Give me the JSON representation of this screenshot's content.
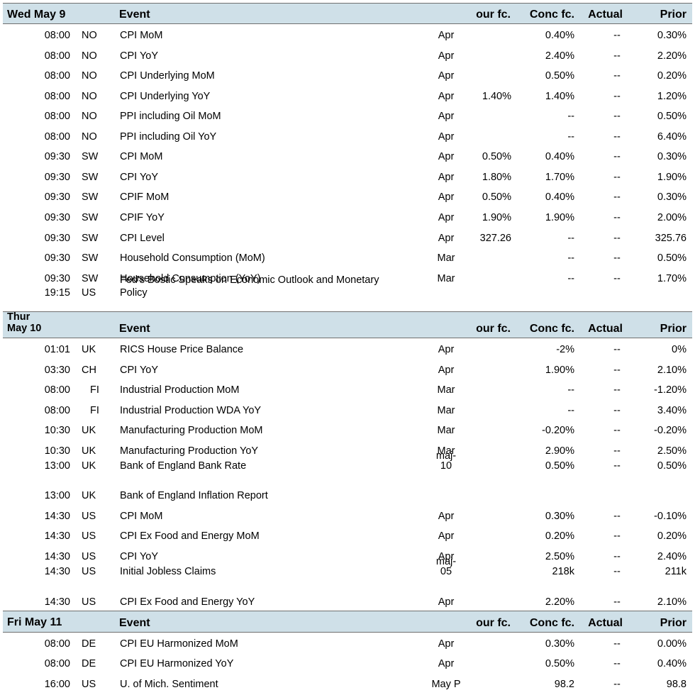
{
  "columns": {
    "event": "Event",
    "our_fc": "our fc.",
    "conc_fc": "Conc fc.",
    "actual": "Actual",
    "prior": "Prior"
  },
  "days": [
    {
      "label_lines": [
        "Wed May 9"
      ],
      "rows": [
        {
          "time": "08:00",
          "country": "NO",
          "event_lines": [
            "CPI MoM"
          ],
          "period_lines": [
            "Apr"
          ],
          "our_fc": "",
          "conc_fc": "0.40%",
          "actual": "--",
          "prior": "0.30%"
        },
        {
          "time": "08:00",
          "country": "NO",
          "event_lines": [
            "CPI YoY"
          ],
          "period_lines": [
            "Apr"
          ],
          "our_fc": "",
          "conc_fc": "2.40%",
          "actual": "--",
          "prior": "2.20%"
        },
        {
          "time": "08:00",
          "country": "NO",
          "event_lines": [
            "CPI Underlying MoM"
          ],
          "period_lines": [
            "Apr"
          ],
          "our_fc": "",
          "conc_fc": "0.50%",
          "actual": "--",
          "prior": "0.20%"
        },
        {
          "time": "08:00",
          "country": "NO",
          "event_lines": [
            "CPI Underlying YoY"
          ],
          "period_lines": [
            "Apr"
          ],
          "our_fc": "1.40%",
          "conc_fc": "1.40%",
          "actual": "--",
          "prior": "1.20%"
        },
        {
          "time": "08:00",
          "country": "NO",
          "event_lines": [
            "PPI including Oil MoM"
          ],
          "period_lines": [
            "Apr"
          ],
          "our_fc": "",
          "conc_fc": "--",
          "actual": "--",
          "prior": "0.50%"
        },
        {
          "time": "08:00",
          "country": "NO",
          "event_lines": [
            "PPI including Oil YoY"
          ],
          "period_lines": [
            "Apr"
          ],
          "our_fc": "",
          "conc_fc": "--",
          "actual": "--",
          "prior": "6.40%"
        },
        {
          "time": "09:30",
          "country": "SW",
          "event_lines": [
            "CPI MoM"
          ],
          "period_lines": [
            "Apr"
          ],
          "our_fc": "0.50%",
          "conc_fc": "0.40%",
          "actual": "--",
          "prior": "0.30%"
        },
        {
          "time": "09:30",
          "country": "SW",
          "event_lines": [
            "CPI YoY"
          ],
          "period_lines": [
            "Apr"
          ],
          "our_fc": "1.80%",
          "conc_fc": "1.70%",
          "actual": "--",
          "prior": "1.90%"
        },
        {
          "time": "09:30",
          "country": "SW",
          "event_lines": [
            "CPIF MoM"
          ],
          "period_lines": [
            "Apr"
          ],
          "our_fc": "0.50%",
          "conc_fc": "0.40%",
          "actual": "--",
          "prior": "0.30%"
        },
        {
          "time": "09:30",
          "country": "SW",
          "event_lines": [
            "CPIF YoY"
          ],
          "period_lines": [
            "Apr"
          ],
          "our_fc": "1.90%",
          "conc_fc": "1.90%",
          "actual": "--",
          "prior": "2.00%"
        },
        {
          "time": "09:30",
          "country": "SW",
          "event_lines": [
            "CPI Level"
          ],
          "period_lines": [
            "Apr"
          ],
          "our_fc": "327.26",
          "conc_fc": "--",
          "actual": "--",
          "prior": "325.76"
        },
        {
          "time": "09:30",
          "country": "SW",
          "event_lines": [
            "Household Consumption (MoM)"
          ],
          "period_lines": [
            "Mar"
          ],
          "our_fc": "",
          "conc_fc": "--",
          "actual": "--",
          "prior": "0.50%"
        },
        {
          "time": "09:30",
          "country": "SW",
          "event_lines": [
            "Household Consumption (YoY)"
          ],
          "period_lines": [
            "Mar"
          ],
          "our_fc": "",
          "conc_fc": "--",
          "actual": "--",
          "prior": "1.70%"
        },
        {
          "time": "19:15",
          "country": "US",
          "event_lines": [
            "Fed's Bostic Speaks on Economic Outlook and Monetary",
            "Policy"
          ],
          "period_lines": [],
          "our_fc": "",
          "conc_fc": "",
          "actual": "",
          "prior": ""
        }
      ]
    },
    {
      "label_lines": [
        "Thur",
        "May 10"
      ],
      "rows": [
        {
          "time": "01:01",
          "country": "UK",
          "event_lines": [
            "RICS House Price Balance"
          ],
          "period_lines": [
            "Apr"
          ],
          "our_fc": "",
          "conc_fc": "-2%",
          "actual": "--",
          "prior": "0%"
        },
        {
          "time": "03:30",
          "country": "CH",
          "event_lines": [
            "CPI YoY"
          ],
          "period_lines": [
            "Apr"
          ],
          "our_fc": "",
          "conc_fc": "1.90%",
          "actual": "--",
          "prior": "2.10%"
        },
        {
          "time": "08:00",
          "country": "FI",
          "event_lines": [
            "Industrial Production MoM"
          ],
          "period_lines": [
            "Mar"
          ],
          "our_fc": "",
          "conc_fc": "--",
          "actual": "--",
          "prior": "-1.20%"
        },
        {
          "time": "08:00",
          "country": "FI",
          "event_lines": [
            "Industrial Production WDA YoY"
          ],
          "period_lines": [
            "Mar"
          ],
          "our_fc": "",
          "conc_fc": "--",
          "actual": "--",
          "prior": "3.40%"
        },
        {
          "time": "10:30",
          "country": "UK",
          "event_lines": [
            "Manufacturing Production MoM"
          ],
          "period_lines": [
            "Mar"
          ],
          "our_fc": "",
          "conc_fc": "-0.20%",
          "actual": "--",
          "prior": "-0.20%"
        },
        {
          "time": "10:30",
          "country": "UK",
          "event_lines": [
            "Manufacturing Production YoY"
          ],
          "period_lines": [
            "Mar"
          ],
          "our_fc": "",
          "conc_fc": "2.90%",
          "actual": "--",
          "prior": "2.50%"
        },
        {
          "time": "13:00",
          "country": "UK",
          "event_lines": [
            "Bank of England Bank Rate"
          ],
          "period_lines": [
            "maj-",
            "10"
          ],
          "our_fc": "",
          "conc_fc": "0.50%",
          "actual": "--",
          "prior": "0.50%"
        },
        {
          "time": "13:00",
          "country": "UK",
          "event_lines": [
            "Bank of England Inflation Report"
          ],
          "period_lines": [],
          "our_fc": "",
          "conc_fc": "",
          "actual": "",
          "prior": ""
        },
        {
          "time": "14:30",
          "country": "US",
          "event_lines": [
            "CPI MoM"
          ],
          "period_lines": [
            "Apr"
          ],
          "our_fc": "",
          "conc_fc": "0.30%",
          "actual": "--",
          "prior": "-0.10%"
        },
        {
          "time": "14:30",
          "country": "US",
          "event_lines": [
            "CPI Ex Food and Energy MoM"
          ],
          "period_lines": [
            "Apr"
          ],
          "our_fc": "",
          "conc_fc": "0.20%",
          "actual": "--",
          "prior": "0.20%"
        },
        {
          "time": "14:30",
          "country": "US",
          "event_lines": [
            "CPI YoY"
          ],
          "period_lines": [
            "Apr"
          ],
          "our_fc": "",
          "conc_fc": "2.50%",
          "actual": "--",
          "prior": "2.40%"
        },
        {
          "time": "14:30",
          "country": "US",
          "event_lines": [
            "Initial Jobless Claims"
          ],
          "period_lines": [
            "maj-",
            "05"
          ],
          "our_fc": "",
          "conc_fc": "218k",
          "actual": "--",
          "prior": "211k"
        },
        {
          "time": "14:30",
          "country": "US",
          "event_lines": [
            "CPI Ex Food and Energy YoY"
          ],
          "period_lines": [
            "Apr"
          ],
          "our_fc": "",
          "conc_fc": "2.20%",
          "actual": "--",
          "prior": "2.10%"
        }
      ]
    },
    {
      "label_lines": [
        "Fri May 11"
      ],
      "rows": [
        {
          "time": "08:00",
          "country": "DE",
          "event_lines": [
            "CPI EU Harmonized MoM"
          ],
          "period_lines": [
            "Apr"
          ],
          "our_fc": "",
          "conc_fc": "0.30%",
          "actual": "--",
          "prior": "0.00%"
        },
        {
          "time": "08:00",
          "country": "DE",
          "event_lines": [
            "CPI EU Harmonized YoY"
          ],
          "period_lines": [
            "Apr"
          ],
          "our_fc": "",
          "conc_fc": "0.50%",
          "actual": "--",
          "prior": "0.40%"
        },
        {
          "time": "16:00",
          "country": "US",
          "event_lines": [
            "U. of Mich. Sentiment"
          ],
          "period_lines": [
            "May P"
          ],
          "our_fc": "",
          "conc_fc": "98.2",
          "actual": "--",
          "prior": "98.8"
        }
      ]
    }
  ]
}
